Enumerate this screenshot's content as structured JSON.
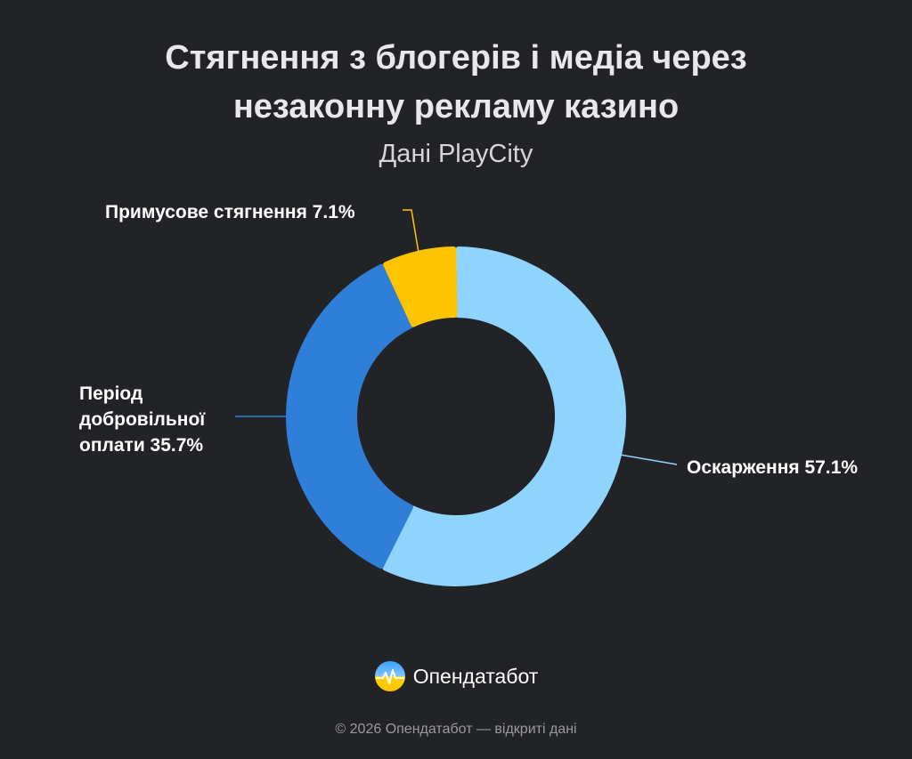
{
  "chart_data": {
    "type": "pie",
    "style": "donut",
    "title_lines": [
      "Стягнення з блогерів і медіа через",
      "незаконну рекламу казино"
    ],
    "subtitle": "Дані PlayCity",
    "slices": [
      {
        "name": "Оскарження",
        "value": 57.1,
        "color": "#8fd3ff",
        "label_lines": [
          "Оскарження 57.1%"
        ]
      },
      {
        "name": "Період добровільної оплати",
        "value": 35.7,
        "color": "#2f7fd9",
        "label_lines": [
          "Період",
          "добровільної",
          "оплати 35.7%"
        ]
      },
      {
        "name": "Примусове стягнення",
        "value": 7.1,
        "color": "#ffc400",
        "label_lines": [
          "Примусове стягнення 7.1%"
        ]
      }
    ]
  },
  "brand": {
    "name": "Опендатабот",
    "icon": "opendatabot-logo-icon"
  },
  "footer": "© 2026 Опендатабот — відкриті дані"
}
